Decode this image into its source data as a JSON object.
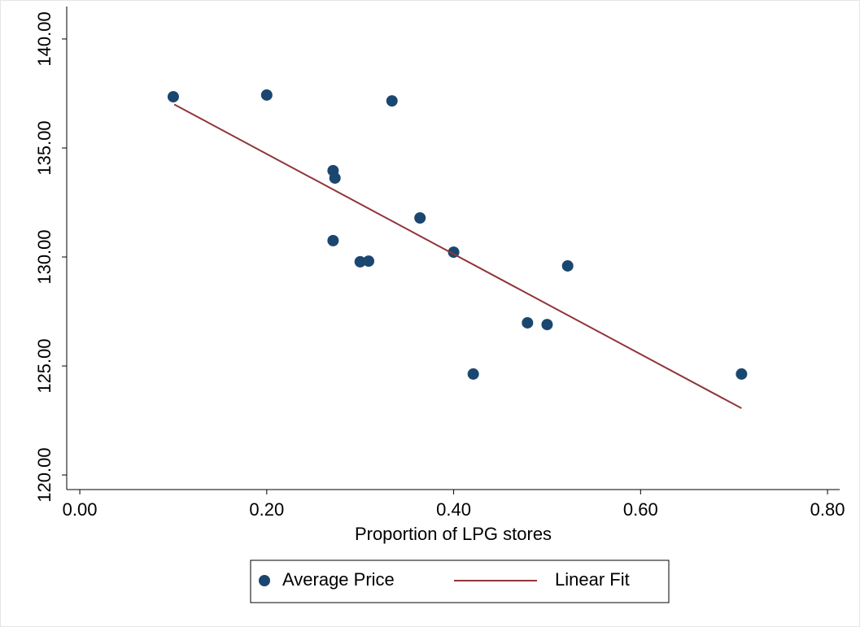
{
  "chart_data": {
    "type": "scatter",
    "x_label": "Proportion of LPG stores",
    "series": [
      {
        "name": "Average Price",
        "type": "scatter",
        "color": "#1a476f",
        "x": [
          0.1,
          0.2,
          0.334,
          0.271,
          0.273,
          0.364,
          0.271,
          0.3,
          0.309,
          0.4,
          0.522,
          0.479,
          0.5,
          0.421,
          0.708
        ],
        "values": [
          137.35,
          137.43,
          137.16,
          133.96,
          133.62,
          131.79,
          130.75,
          129.78,
          129.81,
          130.22,
          129.59,
          126.98,
          126.9,
          124.63,
          124.63
        ]
      },
      {
        "name": "Linear Fit",
        "type": "line",
        "color": "#90353b",
        "x": [
          0.101,
          0.708
        ],
        "values": [
          137.0,
          123.06
        ]
      }
    ],
    "xlim": [
      -0.014,
      0.813
    ],
    "ylim": [
      119.33,
      141.49
    ],
    "xticks": [
      {
        "value": 0,
        "label": "0.00"
      },
      {
        "value": 0.2,
        "label": "0.20"
      },
      {
        "value": 0.4,
        "label": "0.40"
      },
      {
        "value": 0.6,
        "label": "0.60"
      },
      {
        "value": 0.8,
        "label": "0.80"
      }
    ],
    "yticks": [
      {
        "value": 120,
        "label": "120.00"
      },
      {
        "value": 125,
        "label": "125.00"
      },
      {
        "value": 130,
        "label": "130.00"
      },
      {
        "value": 135,
        "label": "135.00"
      },
      {
        "value": 140,
        "label": "140.00"
      }
    ],
    "grid": false,
    "legend": "bottom"
  }
}
